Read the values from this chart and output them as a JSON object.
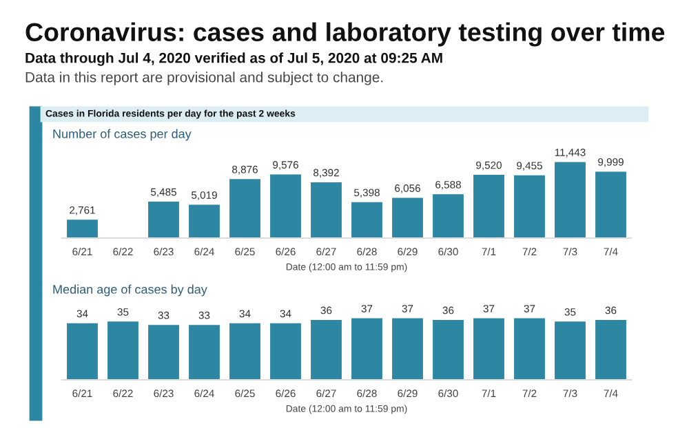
{
  "chart_data": [
    {
      "type": "bar",
      "title": "Coronavirus: cases and laboratory testing over time",
      "subtitle": "Data through Jul 4, 2020 verified as of Jul 5, 2020 at 09:25 AM",
      "annotations": [
        "Data in this report are provisional and subject to change.",
        "Cases in Florida residents per day for the past 2 weeks",
        "Number of cases per day"
      ],
      "xlabel": "Date (12:00 am to 11:59 pm)",
      "categories": [
        "6/21",
        "6/22",
        "6/23",
        "6/24",
        "6/25",
        "6/26",
        "6/27",
        "6/28",
        "6/29",
        "6/30",
        "7/1",
        "7/2",
        "7/3",
        "7/4"
      ],
      "values": [
        2761,
        null,
        5485,
        5019,
        8876,
        9576,
        8392,
        5398,
        6056,
        6588,
        9520,
        9455,
        11443,
        9999
      ],
      "color": "#2e87a2",
      "value_labels": [
        "2,761",
        null,
        "5,485",
        "5,019",
        "8,876",
        "9,576",
        "8,392",
        "5,398",
        "6,056",
        "6,588",
        "9,520",
        "9,455",
        "11,443",
        "9,999"
      ]
    },
    {
      "type": "bar",
      "title": "Median age of cases by day",
      "xlabel": "Date (12:00 am to 11:59 pm)",
      "categories": [
        "6/21",
        "6/22",
        "6/23",
        "6/24",
        "6/25",
        "6/26",
        "6/27",
        "6/28",
        "6/29",
        "6/30",
        "7/1",
        "7/2",
        "7/3",
        "7/4"
      ],
      "values": [
        34,
        35,
        33,
        33,
        34,
        34,
        36,
        37,
        37,
        36,
        37,
        37,
        35,
        36
      ],
      "color": "#2e87a2",
      "data_labels": true
    }
  ]
}
